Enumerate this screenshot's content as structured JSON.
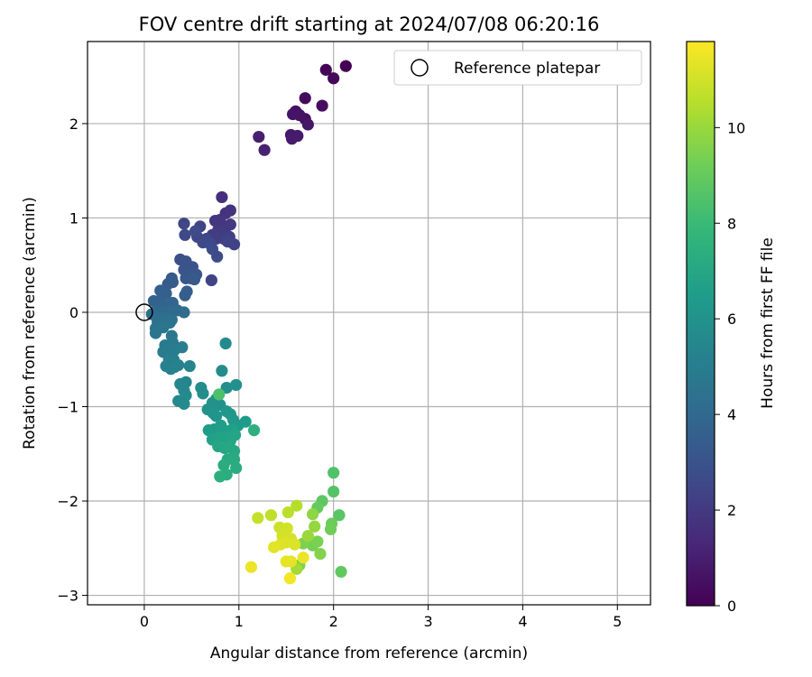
{
  "chart_data": {
    "type": "scatter",
    "title": "FOV centre drift starting at 2024/07/08 06:20:16",
    "xlabel": "Angular distance from reference (arcmin)",
    "ylabel": "Rotation from reference (arcmin)",
    "xlim": [
      -0.6,
      5.35
    ],
    "ylim": [
      -3.1,
      2.87
    ],
    "xticks": [
      0,
      1,
      2,
      3,
      4,
      5
    ],
    "yticks": [
      -3,
      -2,
      -1,
      0,
      1,
      2
    ],
    "grid": true,
    "legend": {
      "position": "top-right",
      "entries": [
        "Reference platepar"
      ]
    },
    "reference_point": {
      "x": 0,
      "y": 0,
      "label": "Reference platepar"
    },
    "colorbar": {
      "label": "Hours from first FF file",
      "colormap": "viridis",
      "range": [
        0,
        11.8
      ],
      "ticks": [
        0,
        2,
        4,
        6,
        8,
        10
      ]
    },
    "points": [
      {
        "x": 2.13,
        "y": 2.61,
        "h": 0.0
      },
      {
        "x": 1.92,
        "y": 2.57,
        "h": 0.1
      },
      {
        "x": 2.0,
        "y": 2.48,
        "h": 0.2
      },
      {
        "x": 1.7,
        "y": 2.27,
        "h": 0.3
      },
      {
        "x": 1.88,
        "y": 2.19,
        "h": 0.4
      },
      {
        "x": 1.6,
        "y": 2.13,
        "h": 0.5
      },
      {
        "x": 1.7,
        "y": 2.05,
        "h": 0.55
      },
      {
        "x": 1.64,
        "y": 2.09,
        "h": 0.6
      },
      {
        "x": 1.57,
        "y": 2.1,
        "h": 0.65
      },
      {
        "x": 1.73,
        "y": 1.99,
        "h": 0.7
      },
      {
        "x": 1.55,
        "y": 1.88,
        "h": 0.8
      },
      {
        "x": 1.62,
        "y": 1.87,
        "h": 0.85
      },
      {
        "x": 1.56,
        "y": 1.84,
        "h": 0.9
      },
      {
        "x": 1.21,
        "y": 1.86,
        "h": 1.0
      },
      {
        "x": 1.27,
        "y": 1.72,
        "h": 1.1
      },
      {
        "x": 0.82,
        "y": 1.22,
        "h": 1.6
      },
      {
        "x": 0.86,
        "y": 1.05,
        "h": 1.7
      },
      {
        "x": 0.91,
        "y": 1.08,
        "h": 1.75
      },
      {
        "x": 0.75,
        "y": 0.97,
        "h": 1.8
      },
      {
        "x": 0.8,
        "y": 0.98,
        "h": 1.85
      },
      {
        "x": 0.86,
        "y": 0.9,
        "h": 1.9
      },
      {
        "x": 0.91,
        "y": 0.93,
        "h": 1.95
      },
      {
        "x": 0.78,
        "y": 0.87,
        "h": 2.0
      },
      {
        "x": 0.83,
        "y": 0.85,
        "h": 2.05
      },
      {
        "x": 0.72,
        "y": 0.82,
        "h": 2.1
      },
      {
        "x": 0.76,
        "y": 0.78,
        "h": 2.15
      },
      {
        "x": 0.84,
        "y": 0.78,
        "h": 2.2
      },
      {
        "x": 0.9,
        "y": 0.8,
        "h": 2.25
      },
      {
        "x": 0.95,
        "y": 0.72,
        "h": 2.3
      },
      {
        "x": 0.88,
        "y": 0.75,
        "h": 2.35
      },
      {
        "x": 0.59,
        "y": 0.91,
        "h": 2.4
      },
      {
        "x": 0.66,
        "y": 0.78,
        "h": 2.45
      },
      {
        "x": 0.56,
        "y": 0.8,
        "h": 2.5
      },
      {
        "x": 0.62,
        "y": 0.74,
        "h": 2.55
      },
      {
        "x": 0.7,
        "y": 0.72,
        "h": 2.6
      },
      {
        "x": 0.72,
        "y": 0.67,
        "h": 2.65
      },
      {
        "x": 0.77,
        "y": 0.59,
        "h": 2.7
      },
      {
        "x": 0.42,
        "y": 0.94,
        "h": 2.5
      },
      {
        "x": 0.43,
        "y": 0.82,
        "h": 2.6
      },
      {
        "x": 0.54,
        "y": 0.86,
        "h": 2.65
      },
      {
        "x": 0.71,
        "y": 0.34,
        "h": 2.4
      },
      {
        "x": 0.38,
        "y": 0.56,
        "h": 2.9
      },
      {
        "x": 0.44,
        "y": 0.54,
        "h": 2.95
      },
      {
        "x": 0.51,
        "y": 0.48,
        "h": 3.0
      },
      {
        "x": 0.42,
        "y": 0.45,
        "h": 3.05
      },
      {
        "x": 0.46,
        "y": 0.4,
        "h": 3.1
      },
      {
        "x": 0.55,
        "y": 0.4,
        "h": 3.15
      },
      {
        "x": 0.44,
        "y": 0.36,
        "h": 3.2
      },
      {
        "x": 0.49,
        "y": 0.36,
        "h": 3.25
      },
      {
        "x": 0.53,
        "y": 0.35,
        "h": 3.3
      },
      {
        "x": 0.29,
        "y": 0.36,
        "h": 3.3
      },
      {
        "x": 0.25,
        "y": 0.3,
        "h": 3.35
      },
      {
        "x": 0.3,
        "y": 0.32,
        "h": 3.4
      },
      {
        "x": 0.45,
        "y": 0.22,
        "h": 3.45
      },
      {
        "x": 0.43,
        "y": 0.18,
        "h": 3.5
      },
      {
        "x": 0.17,
        "y": 0.23,
        "h": 3.55
      },
      {
        "x": 0.23,
        "y": 0.2,
        "h": 3.6
      },
      {
        "x": 0.1,
        "y": 0.12,
        "h": 3.65
      },
      {
        "x": 0.16,
        "y": 0.12,
        "h": 3.7
      },
      {
        "x": 0.22,
        "y": 0.08,
        "h": 3.75
      },
      {
        "x": 0.26,
        "y": 0.06,
        "h": 3.8
      },
      {
        "x": 0.3,
        "y": 0.1,
        "h": 3.85
      },
      {
        "x": 0.13,
        "y": 0.02,
        "h": 3.9
      },
      {
        "x": 0.19,
        "y": 0.01,
        "h": 3.95
      },
      {
        "x": 0.23,
        "y": 0.0,
        "h": 4.0
      },
      {
        "x": 0.28,
        "y": 0.0,
        "h": 4.05
      },
      {
        "x": 0.35,
        "y": 0.02,
        "h": 4.1
      },
      {
        "x": 0.42,
        "y": 0.0,
        "h": 4.15
      },
      {
        "x": 0.08,
        "y": -0.02,
        "h": 4.2
      },
      {
        "x": 0.17,
        "y": -0.06,
        "h": 4.25
      },
      {
        "x": 0.24,
        "y": -0.06,
        "h": 4.3
      },
      {
        "x": 0.29,
        "y": -0.08,
        "h": 4.35
      },
      {
        "x": 0.14,
        "y": -0.1,
        "h": 4.4
      },
      {
        "x": 0.2,
        "y": -0.12,
        "h": 4.45
      },
      {
        "x": 0.27,
        "y": -0.11,
        "h": 4.5
      },
      {
        "x": 0.12,
        "y": -0.17,
        "h": 4.55
      },
      {
        "x": 0.2,
        "y": -0.16,
        "h": 4.6
      },
      {
        "x": 0.12,
        "y": -0.22,
        "h": 4.65
      },
      {
        "x": 0.29,
        "y": -0.25,
        "h": 4.7
      },
      {
        "x": 0.22,
        "y": -0.35,
        "h": 4.75
      },
      {
        "x": 0.3,
        "y": -0.32,
        "h": 4.8
      },
      {
        "x": 0.27,
        "y": -0.38,
        "h": 4.85
      },
      {
        "x": 0.2,
        "y": -0.42,
        "h": 4.9
      },
      {
        "x": 0.32,
        "y": -0.4,
        "h": 4.95
      },
      {
        "x": 0.4,
        "y": -0.37,
        "h": 5.0
      },
      {
        "x": 0.26,
        "y": -0.5,
        "h": 5.05
      },
      {
        "x": 0.31,
        "y": -0.5,
        "h": 5.1
      },
      {
        "x": 0.23,
        "y": -0.57,
        "h": 5.15
      },
      {
        "x": 0.28,
        "y": -0.6,
        "h": 5.2
      },
      {
        "x": 0.32,
        "y": -0.58,
        "h": 5.25
      },
      {
        "x": 0.36,
        "y": -0.56,
        "h": 5.3
      },
      {
        "x": 0.48,
        "y": -0.57,
        "h": 5.35
      },
      {
        "x": 0.38,
        "y": -0.76,
        "h": 5.4
      },
      {
        "x": 0.44,
        "y": -0.74,
        "h": 5.45
      },
      {
        "x": 0.42,
        "y": -0.83,
        "h": 5.5
      },
      {
        "x": 0.36,
        "y": -0.94,
        "h": 5.55
      },
      {
        "x": 0.42,
        "y": -0.97,
        "h": 5.6
      },
      {
        "x": 0.44,
        "y": -0.88,
        "h": 5.65
      },
      {
        "x": 0.6,
        "y": -0.8,
        "h": 5.7
      },
      {
        "x": 0.62,
        "y": -0.86,
        "h": 5.75
      },
      {
        "x": 0.86,
        "y": -0.33,
        "h": 5.6
      },
      {
        "x": 0.82,
        "y": -0.62,
        "h": 5.7
      },
      {
        "x": 0.87,
        "y": -0.8,
        "h": 5.8
      },
      {
        "x": 0.97,
        "y": -0.77,
        "h": 5.85
      },
      {
        "x": 0.76,
        "y": -0.92,
        "h": 5.9
      },
      {
        "x": 0.8,
        "y": -0.98,
        "h": 5.95
      },
      {
        "x": 0.72,
        "y": -0.96,
        "h": 6.0
      },
      {
        "x": 0.67,
        "y": -1.03,
        "h": 6.05
      },
      {
        "x": 0.73,
        "y": -1.07,
        "h": 6.1
      },
      {
        "x": 0.76,
        "y": -1.1,
        "h": 6.15
      },
      {
        "x": 0.87,
        "y": -1.05,
        "h": 6.2
      },
      {
        "x": 0.91,
        "y": -1.08,
        "h": 6.25
      },
      {
        "x": 0.94,
        "y": -1.14,
        "h": 6.3
      },
      {
        "x": 0.99,
        "y": -1.2,
        "h": 6.35
      },
      {
        "x": 1.07,
        "y": -1.16,
        "h": 6.4
      },
      {
        "x": 0.68,
        "y": -1.25,
        "h": 6.45
      },
      {
        "x": 0.74,
        "y": -1.24,
        "h": 6.5
      },
      {
        "x": 0.81,
        "y": -1.2,
        "h": 6.55
      },
      {
        "x": 0.87,
        "y": -1.26,
        "h": 6.6
      },
      {
        "x": 0.93,
        "y": -1.24,
        "h": 6.65
      },
      {
        "x": 0.72,
        "y": -1.35,
        "h": 6.7
      },
      {
        "x": 0.8,
        "y": -1.32,
        "h": 6.75
      },
      {
        "x": 0.86,
        "y": -1.32,
        "h": 6.8
      },
      {
        "x": 0.91,
        "y": -1.36,
        "h": 6.85
      },
      {
        "x": 0.96,
        "y": -1.3,
        "h": 6.9
      },
      {
        "x": 0.78,
        "y": -1.42,
        "h": 6.95
      },
      {
        "x": 0.85,
        "y": -1.44,
        "h": 7.0
      },
      {
        "x": 0.9,
        "y": -1.42,
        "h": 7.05
      },
      {
        "x": 0.95,
        "y": -1.47,
        "h": 7.1
      },
      {
        "x": 0.88,
        "y": -1.56,
        "h": 7.15
      },
      {
        "x": 0.95,
        "y": -1.56,
        "h": 7.2
      },
      {
        "x": 0.97,
        "y": -1.65,
        "h": 7.25
      },
      {
        "x": 0.84,
        "y": -1.62,
        "h": 7.3
      },
      {
        "x": 0.87,
        "y": -1.72,
        "h": 7.35
      },
      {
        "x": 0.8,
        "y": -1.74,
        "h": 7.4
      },
      {
        "x": 1.16,
        "y": -1.25,
        "h": 7.45
      },
      {
        "x": 0.79,
        "y": -0.87,
        "h": 8.4
      },
      {
        "x": 2.0,
        "y": -1.7,
        "h": 8.5
      },
      {
        "x": 2.0,
        "y": -1.9,
        "h": 8.6
      },
      {
        "x": 1.88,
        "y": -2.0,
        "h": 8.8
      },
      {
        "x": 1.83,
        "y": -2.07,
        "h": 9.0
      },
      {
        "x": 2.06,
        "y": -2.15,
        "h": 8.7
      },
      {
        "x": 1.98,
        "y": -2.24,
        "h": 9.1
      },
      {
        "x": 1.97,
        "y": -2.3,
        "h": 9.2
      },
      {
        "x": 2.08,
        "y": -2.75,
        "h": 8.9
      },
      {
        "x": 1.78,
        "y": -2.47,
        "h": 9.3
      },
      {
        "x": 1.83,
        "y": -2.43,
        "h": 9.4
      },
      {
        "x": 1.68,
        "y": -2.45,
        "h": 9.5
      },
      {
        "x": 1.86,
        "y": -2.56,
        "h": 9.6
      },
      {
        "x": 1.64,
        "y": -2.68,
        "h": 9.5
      },
      {
        "x": 1.78,
        "y": -2.14,
        "h": 9.8
      },
      {
        "x": 1.8,
        "y": -2.27,
        "h": 9.9
      },
      {
        "x": 1.73,
        "y": -2.37,
        "h": 10.0
      },
      {
        "x": 1.61,
        "y": -2.72,
        "h": 10.2
      },
      {
        "x": 1.61,
        "y": -2.05,
        "h": 10.5
      },
      {
        "x": 1.52,
        "y": -2.12,
        "h": 10.6
      },
      {
        "x": 1.34,
        "y": -2.15,
        "h": 10.7
      },
      {
        "x": 1.2,
        "y": -2.18,
        "h": 10.8
      },
      {
        "x": 1.43,
        "y": -2.28,
        "h": 10.9
      },
      {
        "x": 1.51,
        "y": -2.29,
        "h": 11.0
      },
      {
        "x": 1.46,
        "y": -2.37,
        "h": 11.05
      },
      {
        "x": 1.55,
        "y": -2.4,
        "h": 11.1
      },
      {
        "x": 1.5,
        "y": -2.44,
        "h": 11.15
      },
      {
        "x": 1.59,
        "y": -2.46,
        "h": 11.2
      },
      {
        "x": 1.44,
        "y": -2.46,
        "h": 11.25
      },
      {
        "x": 1.37,
        "y": -2.49,
        "h": 11.3
      },
      {
        "x": 1.55,
        "y": -2.64,
        "h": 11.35
      },
      {
        "x": 1.5,
        "y": -2.64,
        "h": 11.4
      },
      {
        "x": 1.68,
        "y": -2.6,
        "h": 11.45
      },
      {
        "x": 1.13,
        "y": -2.7,
        "h": 11.5
      },
      {
        "x": 1.54,
        "y": -2.82,
        "h": 11.6
      }
    ]
  }
}
